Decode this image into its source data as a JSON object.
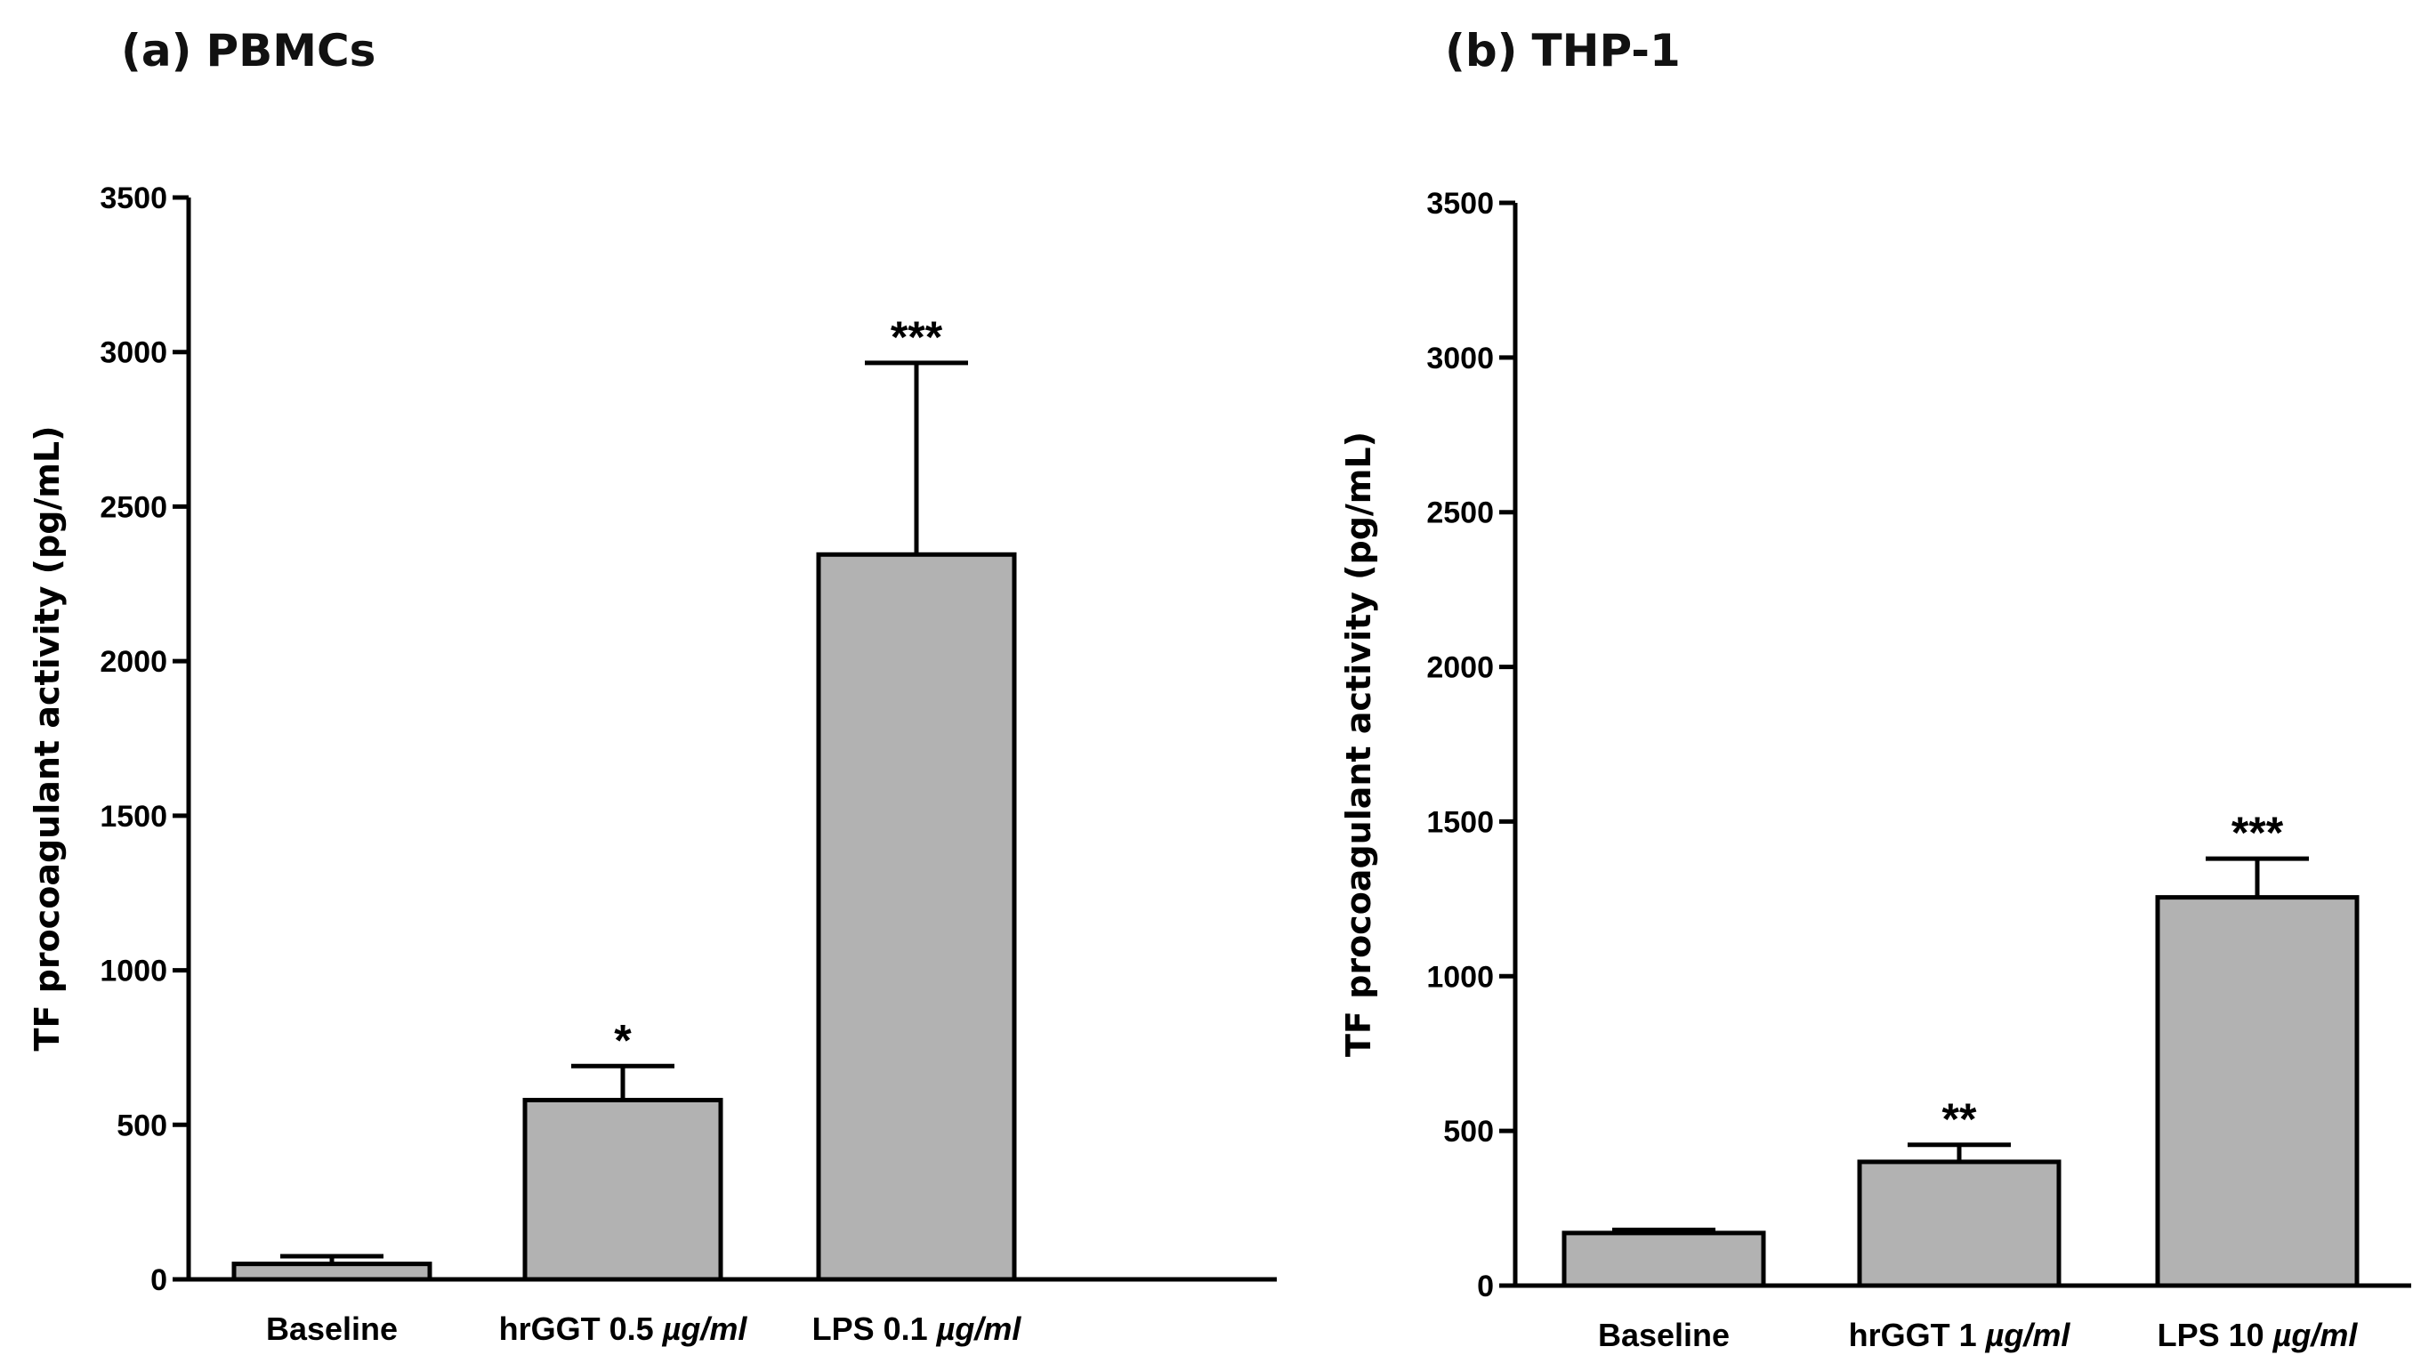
{
  "chart_data": [
    {
      "id": "a",
      "type": "bar",
      "panel_letter": "(a)",
      "title": "PBMCs",
      "ylabel": "TF procoagulant activity (pg/mL)",
      "xlabel": "",
      "ylim": [
        0,
        3500
      ],
      "yticks": [
        "0",
        "500",
        "1000",
        "1500",
        "2000",
        "2500",
        "3000",
        "3500"
      ],
      "categories": [
        {
          "name": "Baseline",
          "unit": ""
        },
        {
          "name": "hrGGT 0.5 ",
          "unit": "µg/ml"
        },
        {
          "name": "LPS 0.1 ",
          "unit": "µg/ml"
        }
      ],
      "values": [
        50,
        580,
        2345
      ],
      "errors": [
        25,
        110,
        620
      ],
      "significance": [
        "",
        "*",
        "***"
      ]
    },
    {
      "id": "b",
      "type": "bar",
      "panel_letter": "(b)",
      "title": "THP-1",
      "ylabel": "TF procoagulant activity (pg/mL)",
      "xlabel": "",
      "ylim": [
        0,
        3500
      ],
      "yticks": [
        "0",
        "500",
        "1000",
        "1500",
        "2000",
        "2500",
        "3000",
        "3500"
      ],
      "categories": [
        {
          "name": "Baseline",
          "unit": ""
        },
        {
          "name": "hrGGT 1 ",
          "unit": "µg/ml"
        },
        {
          "name": "LPS 10 ",
          "unit": "µg/ml"
        }
      ],
      "values": [
        170,
        400,
        1255
      ],
      "errors": [
        10,
        55,
        125
      ],
      "significance": [
        "",
        "**",
        "***"
      ]
    }
  ]
}
